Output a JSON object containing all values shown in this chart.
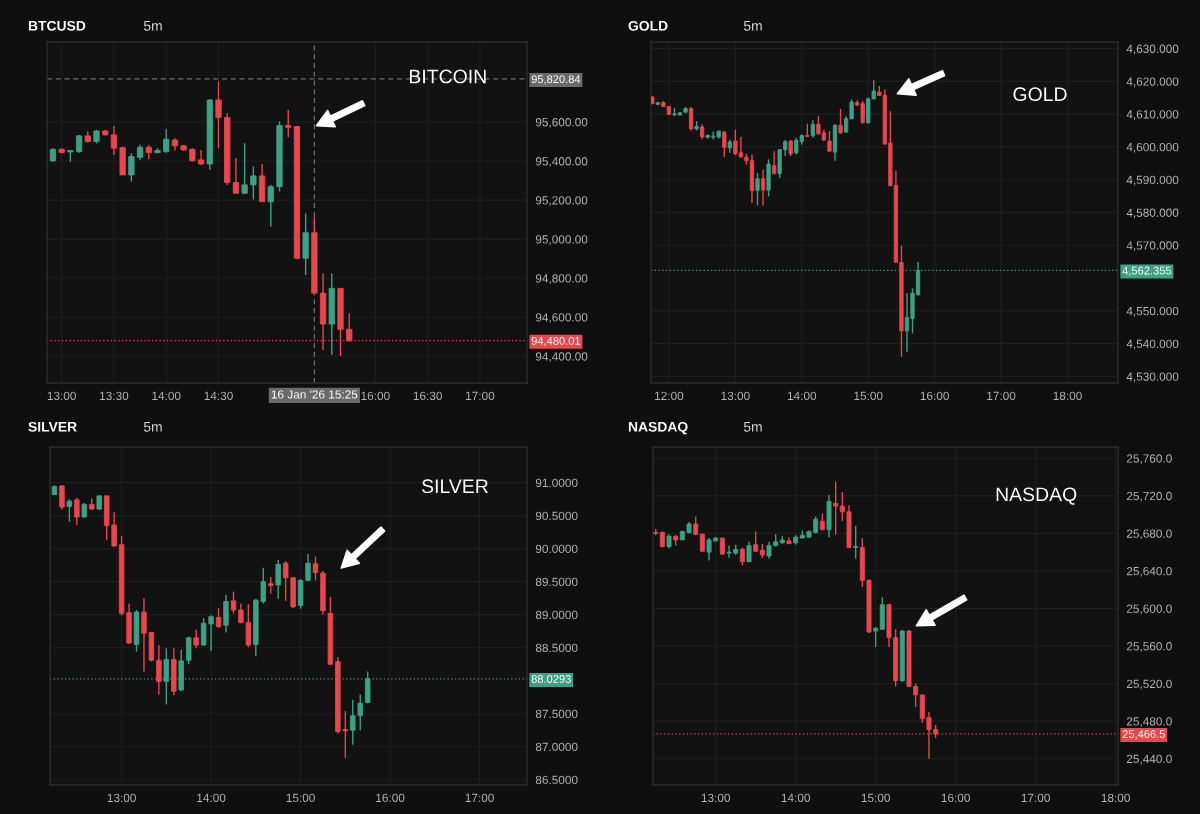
{
  "chart_data": [
    {
      "type": "candlestick",
      "title": "BTCUSD",
      "subtitle": "5m",
      "annotations": [
        "BITCOIN"
      ],
      "x": [
        12.9167,
        13,
        13.0833,
        13.1667,
        13.25,
        13.3333,
        13.4167,
        13.5,
        13.5833,
        13.6667,
        13.75,
        13.8333,
        13.9167,
        14,
        14.0833,
        14.1667,
        14.25,
        14.3333,
        14.4167,
        14.5,
        14.5833,
        14.6667,
        14.75,
        14.8333,
        14.9167,
        15,
        15.0833,
        15.1667,
        15.25,
        15.3333,
        15.4167,
        15.5,
        15.5833,
        15.6667,
        15.75
      ],
      "ohlc": [
        [
          95401,
          95466,
          95397,
          95460
        ],
        [
          95460,
          95466,
          95440,
          95443
        ],
        [
          95447,
          95454,
          95397,
          95454
        ],
        [
          95448,
          95534,
          95443,
          95529
        ],
        [
          95529,
          95551,
          95495,
          95500
        ],
        [
          95500,
          95560,
          95491,
          95554
        ],
        [
          95554,
          95560,
          95532,
          95534
        ],
        [
          95534,
          95580,
          95431,
          95466
        ],
        [
          95469,
          95474,
          95329,
          95329
        ],
        [
          95329,
          95440,
          95295,
          95423
        ],
        [
          95419,
          95483,
          95406,
          95471
        ],
        [
          95471,
          95483,
          95409,
          95443
        ],
        [
          95443,
          95466,
          95440,
          95454
        ],
        [
          95448,
          95563,
          95443,
          95512
        ],
        [
          95508,
          95517,
          95454,
          95478
        ],
        [
          95478,
          95483,
          95454,
          95457
        ],
        [
          95460,
          95466,
          95397,
          95402
        ],
        [
          95406,
          95457,
          95380,
          95385
        ],
        [
          95385,
          95717,
          95355,
          95713
        ],
        [
          95713,
          95807,
          95466,
          95623
        ],
        [
          95624,
          95645,
          95278,
          95290
        ],
        [
          95290,
          95414,
          95232,
          95235
        ],
        [
          95235,
          95491,
          95232,
          95278
        ],
        [
          95278,
          95372,
          95204,
          95324
        ],
        [
          95324,
          95385,
          95192,
          95192
        ],
        [
          95192,
          95278,
          95064,
          95269
        ],
        [
          95269,
          95602,
          95244,
          95582
        ],
        [
          95582,
          95662,
          95522,
          95573
        ],
        [
          95577,
          95580,
          94897,
          94902
        ],
        [
          94902,
          95132,
          94816,
          95033
        ],
        [
          95033,
          95115,
          94719,
          94723
        ],
        [
          94723,
          94825,
          94432,
          94565
        ],
        [
          94565,
          94825,
          94407,
          94748
        ],
        [
          94748,
          94748,
          94401,
          94538
        ],
        [
          94538,
          94620,
          94475,
          94480.01
        ]
      ],
      "colors": [
        "#40a085",
        "#e5484f",
        "#40a085",
        "#40a085",
        "#e5484f",
        "#40a085",
        "#e5484f",
        "#e5484f",
        "#e5484f",
        "#40a085",
        "#40a085",
        "#e5484f",
        "#40a085",
        "#40a085",
        "#e5484f",
        "#e5484f",
        "#e5484f",
        "#e5484f",
        "#40a085",
        "#e5484f",
        "#e5484f",
        "#e5484f",
        "#40a085",
        "#40a085",
        "#e5484f",
        "#40a085",
        "#40a085",
        "#e5484f",
        "#e5484f",
        "#40a085",
        "#e5484f",
        "#e5484f",
        "#40a085",
        "#e5484f",
        "#e5484f"
      ],
      "xlim": [
        12.86,
        17.45
      ],
      "xticks": [
        {
          "value": 13,
          "label": "13:00"
        },
        {
          "value": 13.5,
          "label": "13:30"
        },
        {
          "value": 14,
          "label": "14:00"
        },
        {
          "value": 14.5,
          "label": "14:30"
        },
        {
          "value": 16,
          "label": "16:00"
        },
        {
          "value": 16.5,
          "label": "16:30"
        },
        {
          "value": 17,
          "label": "17:00"
        }
      ],
      "ylim": [
        94263,
        96010
      ],
      "yticks": [
        {
          "value": 94400,
          "label": "94,400.00"
        },
        {
          "value": 94600,
          "label": "94,600.00"
        },
        {
          "value": 94800,
          "label": "94,800.00"
        },
        {
          "value": 95000,
          "label": "95,000.00"
        },
        {
          "value": 95200,
          "label": "95,200.00"
        },
        {
          "value": 95400,
          "label": "95,400.00"
        },
        {
          "value": 95600,
          "label": "95,600.00"
        }
      ],
      "grid": true,
      "ref_lines": [
        {
          "axis": "y",
          "value": 95820.84,
          "label": "95,820.84",
          "color": "#6a6a6a",
          "line_style": "dashed"
        },
        {
          "axis": "x",
          "value": 15.4167,
          "label": "16 Jan '26 15:25",
          "color": "#6a6a6a",
          "line_style": "dashed"
        },
        {
          "axis": "y",
          "value": 94480.01,
          "label": "94,480.01",
          "color": "#e5484f",
          "line_style": "dotted"
        }
      ]
    },
    {
      "type": "candlestick",
      "title": "GOLD",
      "subtitle": "5m",
      "annotations": [
        "GOLD"
      ],
      "x": [
        11.75,
        11.8333,
        11.9167,
        12,
        12.0833,
        12.1667,
        12.25,
        12.3333,
        12.4167,
        12.5,
        12.5833,
        12.6667,
        12.75,
        12.8333,
        12.9167,
        13,
        13.0833,
        13.1667,
        13.25,
        13.3333,
        13.4167,
        13.5,
        13.5833,
        13.6667,
        13.75,
        13.8333,
        13.9167,
        14,
        14.0833,
        14.1667,
        14.25,
        14.3333,
        14.4167,
        14.5,
        14.5833,
        14.6667,
        14.75,
        14.8333,
        14.9167,
        15,
        15.0833,
        15.1667,
        15.25,
        15.3333,
        15.4167,
        15.5,
        15.5833,
        15.6667,
        15.75
      ],
      "ohlc": [
        [
          4615.2,
          4615.5,
          4613.0,
          4613.2
        ],
        [
          4613.0,
          4613.8,
          4612.8,
          4613.5
        ],
        [
          4613.5,
          4614.0,
          4612.2,
          4612.3
        ],
        [
          4612.3,
          4612.5,
          4609.7,
          4609.9
        ],
        [
          4609.8,
          4611.9,
          4609.4,
          4610.1
        ],
        [
          4609.7,
          4610.6,
          4609.7,
          4610.4
        ],
        [
          4610.6,
          4612.2,
          4610.4,
          4611.7
        ],
        [
          4611.7,
          4612.2,
          4605.0,
          4605.5
        ],
        [
          4605.5,
          4607.9,
          4605.0,
          4606.3
        ],
        [
          4606.1,
          4606.9,
          4602.3,
          4603.1
        ],
        [
          4602.9,
          4603.8,
          4602.6,
          4603.5
        ],
        [
          4603.0,
          4604.6,
          4602.3,
          4603.3
        ],
        [
          4603.0,
          4605.0,
          4602.6,
          4604.8
        ],
        [
          4604.5,
          4604.8,
          4596.9,
          4599.9
        ],
        [
          4599.7,
          4602.3,
          4598.2,
          4601.5
        ],
        [
          4601.8,
          4605.3,
          4597.5,
          4597.9
        ],
        [
          4598.2,
          4603.1,
          4596.7,
          4597.0
        ],
        [
          4596.9,
          4597.9,
          4594.6,
          4595.8
        ],
        [
          4595.8,
          4597.7,
          4582.9,
          4586.7
        ],
        [
          4586.8,
          4592.1,
          4582.2,
          4590.3
        ],
        [
          4590.3,
          4593.1,
          4582.1,
          4586.9
        ],
        [
          4586.8,
          4596.2,
          4584.9,
          4594.8
        ],
        [
          4594.3,
          4598.7,
          4591.6,
          4591.9
        ],
        [
          4591.9,
          4599.2,
          4590.5,
          4599.2
        ],
        [
          4599.2,
          4602.1,
          4597.2,
          4601.6
        ],
        [
          4601.8,
          4602.1,
          4597.2,
          4597.9
        ],
        [
          4598.2,
          4602.8,
          4597.7,
          4602.0
        ],
        [
          4601.6,
          4603.8,
          4600.7,
          4603.5
        ],
        [
          4603.5,
          4607.1,
          4603.0,
          4603.2
        ],
        [
          4603.5,
          4608.1,
          4602.8,
          4606.9
        ],
        [
          4606.9,
          4609.4,
          4603.8,
          4604.0
        ],
        [
          4604.3,
          4605.3,
          4601.8,
          4602.1
        ],
        [
          4601.8,
          4604.8,
          4598.5,
          4598.7
        ],
        [
          4598.4,
          4606.9,
          4595.8,
          4606.6
        ],
        [
          4606.6,
          4611.6,
          4604.0,
          4604.3
        ],
        [
          4604.5,
          4609.4,
          4604.3,
          4608.6
        ],
        [
          4608.6,
          4614.5,
          4608.4,
          4613.7
        ],
        [
          4613.5,
          4614.2,
          4612.5,
          4612.8
        ],
        [
          4613.2,
          4614.0,
          4607.1,
          4607.4
        ],
        [
          4607.4,
          4615.0,
          4607.1,
          4614.7
        ],
        [
          4614.7,
          4620.3,
          4614.5,
          4617.0
        ],
        [
          4616.7,
          4618.6,
          4615.5,
          4615.7
        ],
        [
          4615.8,
          4617.5,
          4600.7,
          4600.9
        ],
        [
          4601.2,
          4610.9,
          4588.0,
          4588.2
        ],
        [
          4588.3,
          4592.8,
          4564.6,
          4564.8
        ],
        [
          4564.8,
          4569.9,
          4536.0,
          4543.9
        ],
        [
          4543.9,
          4555.4,
          4537.5,
          4548.0
        ],
        [
          4547.7,
          4556.9,
          4543.1,
          4555.4
        ],
        [
          4554.9,
          4564.9,
          4554.7,
          4562.355
        ]
      ],
      "colors": [
        "#e5484f",
        "#40a085",
        "#e5484f",
        "#e5484f",
        "#40a085",
        "#40a085",
        "#40a085",
        "#e5484f",
        "#40a085",
        "#e5484f",
        "#40a085",
        "#40a085",
        "#40a085",
        "#e5484f",
        "#40a085",
        "#e5484f",
        "#e5484f",
        "#e5484f",
        "#e5484f",
        "#40a085",
        "#e5484f",
        "#40a085",
        "#e5484f",
        "#40a085",
        "#40a085",
        "#e5484f",
        "#40a085",
        "#40a085",
        "#e5484f",
        "#40a085",
        "#e5484f",
        "#e5484f",
        "#e5484f",
        "#40a085",
        "#e5484f",
        "#40a085",
        "#40a085",
        "#e5484f",
        "#e5484f",
        "#40a085",
        "#40a085",
        "#e5484f",
        "#e5484f",
        "#e5484f",
        "#e5484f",
        "#e5484f",
        "#40a085",
        "#40a085",
        "#40a085"
      ],
      "xlim": [
        11.73,
        18.76
      ],
      "xticks": [
        {
          "value": 12,
          "label": "12:00"
        },
        {
          "value": 13,
          "label": "13:00"
        },
        {
          "value": 14,
          "label": "14:00"
        },
        {
          "value": 15,
          "label": "15:00"
        },
        {
          "value": 16,
          "label": "16:00"
        },
        {
          "value": 17,
          "label": "17:00"
        },
        {
          "value": 18,
          "label": "18:00"
        }
      ],
      "ylim": [
        4528,
        4632
      ],
      "yticks": [
        {
          "value": 4530,
          "label": "4,530.000"
        },
        {
          "value": 4540,
          "label": "4,540.000"
        },
        {
          "value": 4550,
          "label": "4,550.000"
        },
        {
          "value": 4570,
          "label": "4,570.000"
        },
        {
          "value": 4580,
          "label": "4,580.000"
        },
        {
          "value": 4590,
          "label": "4,590.000"
        },
        {
          "value": 4600,
          "label": "4,600.000"
        },
        {
          "value": 4610,
          "label": "4,610.000"
        },
        {
          "value": 4620,
          "label": "4,620.000"
        },
        {
          "value": 4630,
          "label": "4,630.000"
        }
      ],
      "grid": true,
      "ref_lines": [
        {
          "axis": "y",
          "value": 4562.355,
          "label": "4,562.355",
          "color": "#40a085",
          "line_style": "dotted"
        }
      ]
    },
    {
      "type": "candlestick",
      "title": "SILVER",
      "subtitle": "5m",
      "annotations": [
        "SILVER"
      ],
      "x": [
        12.25,
        12.3333,
        12.4167,
        12.5,
        12.5833,
        12.6667,
        12.75,
        12.8333,
        12.9167,
        13,
        13.0833,
        13.1667,
        13.25,
        13.3333,
        13.4167,
        13.5,
        13.5833,
        13.6667,
        13.75,
        13.8333,
        13.9167,
        14,
        14.0833,
        14.1667,
        14.25,
        14.3333,
        14.4167,
        14.5,
        14.5833,
        14.6667,
        14.75,
        14.8333,
        14.9167,
        15,
        15.0833,
        15.1667,
        15.25,
        15.3333,
        15.4167,
        15.5,
        15.5833,
        15.6667,
        15.75
      ],
      "ohlc": [
        [
          90.82,
          90.96,
          90.81,
          90.94
        ],
        [
          90.95,
          90.96,
          90.59,
          90.63
        ],
        [
          90.64,
          90.75,
          90.41,
          90.72
        ],
        [
          90.74,
          90.77,
          90.36,
          90.48
        ],
        [
          90.48,
          90.69,
          90.47,
          90.67
        ],
        [
          90.67,
          90.76,
          90.59,
          90.6
        ],
        [
          90.6,
          90.8,
          90.59,
          90.8
        ],
        [
          90.8,
          90.8,
          90.13,
          90.35
        ],
        [
          90.36,
          90.56,
          90.03,
          90.04
        ],
        [
          90.06,
          90.19,
          88.99,
          89.02
        ],
        [
          89.03,
          89.17,
          88.56,
          88.57
        ],
        [
          88.55,
          89.07,
          88.44,
          89.04
        ],
        [
          89.04,
          89.25,
          88.14,
          88.72
        ],
        [
          88.73,
          88.74,
          88.29,
          88.31
        ],
        [
          88.31,
          88.54,
          87.79,
          87.99
        ],
        [
          87.99,
          88.49,
          87.64,
          88.32
        ],
        [
          88.32,
          88.49,
          87.78,
          87.84
        ],
        [
          87.86,
          88.47,
          87.84,
          88.3
        ],
        [
          88.31,
          88.67,
          88.25,
          88.65
        ],
        [
          88.65,
          88.77,
          88.49,
          88.54
        ],
        [
          88.54,
          88.95,
          88.53,
          88.87
        ],
        [
          88.86,
          88.99,
          88.45,
          88.97
        ],
        [
          88.96,
          89.1,
          88.8,
          88.82
        ],
        [
          88.84,
          89.3,
          88.73,
          89.2
        ],
        [
          89.21,
          89.35,
          89.02,
          89.07
        ],
        [
          89.07,
          89.17,
          88.87,
          88.88
        ],
        [
          88.88,
          89.16,
          88.51,
          88.54
        ],
        [
          88.55,
          89.24,
          88.37,
          89.22
        ],
        [
          89.2,
          89.71,
          89.17,
          89.5
        ],
        [
          89.47,
          89.57,
          89.32,
          89.44
        ],
        [
          89.45,
          89.83,
          89.24,
          89.76
        ],
        [
          89.78,
          89.81,
          89.21,
          89.56
        ],
        [
          89.56,
          89.57,
          89.1,
          89.12
        ],
        [
          89.14,
          89.54,
          89.09,
          89.52
        ],
        [
          89.52,
          89.92,
          89.51,
          89.78
        ],
        [
          89.77,
          89.88,
          89.52,
          89.64
        ],
        [
          89.63,
          89.66,
          89.0,
          89.06
        ],
        [
          89.02,
          89.27,
          88.24,
          88.25
        ],
        [
          88.29,
          88.36,
          87.2,
          87.23
        ],
        [
          87.26,
          87.54,
          86.83,
          87.24
        ],
        [
          87.25,
          87.71,
          87.03,
          87.47
        ],
        [
          87.47,
          87.79,
          87.25,
          87.66
        ],
        [
          87.67,
          88.14,
          87.66,
          88.0293
        ]
      ],
      "colors": [
        "#40a085",
        "#e5484f",
        "#40a085",
        "#e5484f",
        "#40a085",
        "#e5484f",
        "#40a085",
        "#e5484f",
        "#e5484f",
        "#e5484f",
        "#e5484f",
        "#40a085",
        "#e5484f",
        "#e5484f",
        "#e5484f",
        "#40a085",
        "#e5484f",
        "#40a085",
        "#40a085",
        "#e5484f",
        "#40a085",
        "#40a085",
        "#e5484f",
        "#40a085",
        "#e5484f",
        "#e5484f",
        "#e5484f",
        "#40a085",
        "#40a085",
        "#e5484f",
        "#40a085",
        "#e5484f",
        "#e5484f",
        "#40a085",
        "#40a085",
        "#e5484f",
        "#e5484f",
        "#e5484f",
        "#e5484f",
        "#e5484f",
        "#40a085",
        "#40a085",
        "#40a085"
      ],
      "xlim": [
        12.2,
        17.53
      ],
      "xticks": [
        {
          "value": 13,
          "label": "13:00"
        },
        {
          "value": 14,
          "label": "14:00"
        },
        {
          "value": 15,
          "label": "15:00"
        },
        {
          "value": 16,
          "label": "16:00"
        },
        {
          "value": 17,
          "label": "17:00"
        }
      ],
      "ylim": [
        86.42,
        91.54
      ],
      "yticks": [
        {
          "value": 86.5,
          "label": "86.5000"
        },
        {
          "value": 87,
          "label": "87.0000"
        },
        {
          "value": 87.5,
          "label": "87.5000"
        },
        {
          "value": 88.5,
          "label": "88.5000"
        },
        {
          "value": 89,
          "label": "89.0000"
        },
        {
          "value": 89.5,
          "label": "89.5000"
        },
        {
          "value": 90,
          "label": "90.0000"
        },
        {
          "value": 90.5,
          "label": "90.5000"
        },
        {
          "value": 91,
          "label": "91.0000"
        }
      ],
      "grid": true,
      "ref_lines": [
        {
          "axis": "y",
          "value": 88.0293,
          "label": "88.0293",
          "color": "#40a085",
          "line_style": "dotted"
        }
      ]
    },
    {
      "type": "candlestick",
      "title": "NASDAQ",
      "subtitle": "5m",
      "annotations": [
        "NASDAQ"
      ],
      "x": [
        12.25,
        12.3333,
        12.4167,
        12.5,
        12.5833,
        12.6667,
        12.75,
        12.8333,
        12.9167,
        13,
        13.0833,
        13.1667,
        13.25,
        13.3333,
        13.4167,
        13.5,
        13.5833,
        13.6667,
        13.75,
        13.8333,
        13.9167,
        14,
        14.0833,
        14.1667,
        14.25,
        14.3333,
        14.4167,
        14.5,
        14.5833,
        14.6667,
        14.75,
        14.8333,
        14.9167,
        15,
        15.0833,
        15.1667,
        15.25,
        15.3333,
        15.4167,
        15.5,
        15.5833,
        15.6667,
        15.75
      ],
      "ohlc": [
        [
          25681,
          25685,
          25678,
          25680
        ],
        [
          25681,
          25682,
          25665,
          25666
        ],
        [
          25666,
          25679,
          25664,
          25677
        ],
        [
          25677,
          25678,
          25667,
          25673
        ],
        [
          25673,
          25683,
          25673,
          25682
        ],
        [
          25681,
          25692,
          25680,
          25690
        ],
        [
          25690,
          25698,
          25678,
          25679
        ],
        [
          25679,
          25680,
          25660,
          25661
        ],
        [
          25660,
          25675,
          25651,
          25673
        ],
        [
          25672,
          25676,
          25671,
          25675
        ],
        [
          25675,
          25675,
          25657,
          25658
        ],
        [
          25659,
          25667,
          25654,
          25660
        ],
        [
          25659,
          25668,
          25657,
          25663
        ],
        [
          25663,
          25665,
          25646,
          25650
        ],
        [
          25650,
          25671,
          25649,
          25667
        ],
        [
          25668,
          25682,
          25660,
          25661
        ],
        [
          25662,
          25669,
          25654,
          25657
        ],
        [
          25656,
          25671,
          25653,
          25667
        ],
        [
          25667,
          25679,
          25666,
          25671
        ],
        [
          25670,
          25677,
          25669,
          25673
        ],
        [
          25672,
          25676,
          25669,
          25669
        ],
        [
          25670,
          25678,
          25668,
          25676
        ],
        [
          25675,
          25683,
          25675,
          25678
        ],
        [
          25676,
          25683,
          25675,
          25682
        ],
        [
          25681,
          25698,
          25680,
          25695
        ],
        [
          25693,
          25701,
          25683,
          25684
        ],
        [
          25684,
          25721,
          25676,
          25714
        ],
        [
          25712,
          25735,
          25679,
          25709
        ],
        [
          25709,
          25724,
          25693,
          25703
        ],
        [
          25703,
          25710,
          25665,
          25665
        ],
        [
          25665,
          25688,
          25653,
          25666
        ],
        [
          25665,
          25675,
          25623,
          25630
        ],
        [
          25630,
          25631,
          25574,
          25575
        ],
        [
          25576,
          25580,
          25559,
          25579
        ],
        [
          25578,
          25612,
          25577,
          25604
        ],
        [
          25604,
          25605,
          25559,
          25569
        ],
        [
          25569,
          25578,
          25517,
          25523
        ],
        [
          25523,
          25577,
          25522,
          25576
        ],
        [
          25576,
          25577,
          25517,
          25517
        ],
        [
          25517,
          25520,
          25495,
          25508
        ],
        [
          25508,
          25508,
          25478,
          25483
        ],
        [
          25484,
          25490,
          25440,
          25471
        ],
        [
          25471,
          25476,
          25462,
          25466.5
        ]
      ],
      "colors": [
        "#e5484f",
        "#e5484f",
        "#40a085",
        "#e5484f",
        "#40a085",
        "#40a085",
        "#e5484f",
        "#e5484f",
        "#40a085",
        "#40a085",
        "#e5484f",
        "#40a085",
        "#40a085",
        "#e5484f",
        "#40a085",
        "#e5484f",
        "#e5484f",
        "#40a085",
        "#40a085",
        "#40a085",
        "#e5484f",
        "#40a085",
        "#40a085",
        "#40a085",
        "#40a085",
        "#e5484f",
        "#40a085",
        "#e5484f",
        "#e5484f",
        "#e5484f",
        "#40a085",
        "#e5484f",
        "#e5484f",
        "#40a085",
        "#40a085",
        "#e5484f",
        "#e5484f",
        "#40a085",
        "#e5484f",
        "#e5484f",
        "#e5484f",
        "#e5484f",
        "#e5484f"
      ],
      "xlim": [
        12.216,
        18.03
      ],
      "xticks": [
        {
          "value": 13,
          "label": "13:00"
        },
        {
          "value": 14,
          "label": "14:00"
        },
        {
          "value": 15,
          "label": "15:00"
        },
        {
          "value": 16,
          "label": "16:00"
        },
        {
          "value": 17,
          "label": "17:00"
        },
        {
          "value": 18,
          "label": "18:00"
        }
      ],
      "ylim": [
        25412,
        25772
      ],
      "yticks": [
        {
          "value": 25440,
          "label": "25,440.0"
        },
        {
          "value": 25480,
          "label": "25,480.0"
        },
        {
          "value": 25520,
          "label": "25,520.0"
        },
        {
          "value": 25560,
          "label": "25,560.0"
        },
        {
          "value": 25600,
          "label": "25,600.0"
        },
        {
          "value": 25640,
          "label": "25,640.0"
        },
        {
          "value": 25680,
          "label": "25,680.0"
        },
        {
          "value": 25720,
          "label": "25,720.0"
        },
        {
          "value": 25760,
          "label": "25,760.0"
        }
      ],
      "grid": true,
      "ref_lines": [
        {
          "axis": "y",
          "value": 25466.5,
          "label": "25,466.5",
          "color": "#e5484f",
          "line_style": "dotted"
        }
      ]
    }
  ]
}
